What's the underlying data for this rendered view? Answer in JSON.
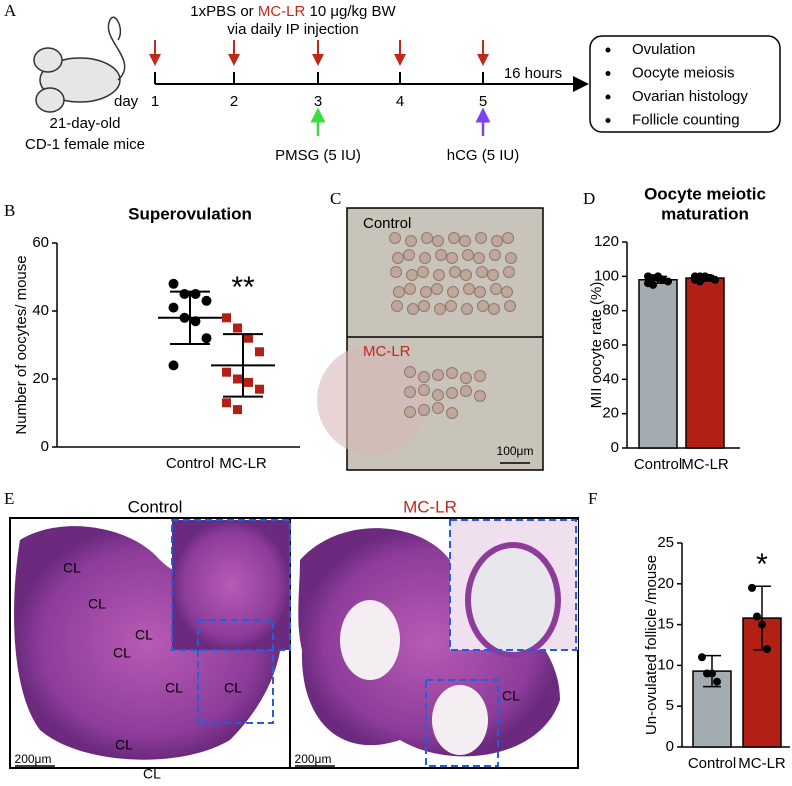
{
  "panel_labels": [
    "A",
    "B",
    "C",
    "D",
    "E",
    "F"
  ],
  "schematic": {
    "treatment_prefix": "1xPBS or",
    "treatment_toxin": "MC-LR",
    "treatment_suffix": "10 μg/kg BW",
    "route": "via daily IP injection",
    "day_word": "day",
    "days": [
      "1",
      "2",
      "3",
      "4",
      "5"
    ],
    "interval": "16 hours",
    "animal": [
      "21-day-old",
      "CD-1 female mice"
    ],
    "pmsg": "PMSG (5 IU)",
    "hcg": "hCG (5 IU)",
    "endpoints": [
      "Ovulation",
      "Oocyte meiosis",
      "Ovarian histology",
      "Follicle counting"
    ]
  },
  "chart_data": [
    {
      "type": "dotplot",
      "title": "Superovulation",
      "ylabel": "Number  of oocytes/ mouse",
      "categories": [
        "Control",
        "MC-LR"
      ],
      "category_colors": [
        "#000000",
        "#c0281b"
      ],
      "groups": [
        {
          "color": "#000000",
          "marker": "circle",
          "values": [
            48,
            45,
            45,
            43,
            41,
            38,
            37,
            32,
            24
          ],
          "mean": 38,
          "sd": 7.7
        },
        {
          "color": "#b22015",
          "marker": "square",
          "values": [
            38,
            35,
            32,
            28,
            22,
            20,
            19,
            17,
            13,
            11
          ],
          "mean": 24,
          "sd": 9.2
        }
      ],
      "annotation": "**",
      "ylim": [
        0,
        60
      ],
      "yticks": [
        0,
        20,
        40,
        60
      ]
    },
    {
      "type": "bar",
      "title": [
        "Oocyte meiotic",
        "maturation"
      ],
      "ylabel": "MII oocyte rate (%)",
      "categories": [
        "Control",
        "MC-LR"
      ],
      "category_colors": [
        "#000000",
        "#c0281b"
      ],
      "colors": [
        "#a3adb1",
        "#b22015"
      ],
      "values": [
        98,
        99
      ],
      "errors": [
        2,
        1.5
      ],
      "points": [
        [
          100,
          99,
          99,
          98,
          97,
          96,
          95,
          100
        ],
        [
          100,
          100,
          99,
          99,
          98,
          98,
          97,
          100,
          99
        ]
      ],
      "ylim": [
        0,
        120
      ],
      "yticks": [
        0,
        20,
        40,
        60,
        80,
        100,
        120
      ]
    },
    {
      "type": "bar",
      "ylabel": "Un-ovulated follicle /mouse",
      "categories": [
        "Control",
        "MC-LR"
      ],
      "category_colors": [
        "#000000",
        "#c0281b"
      ],
      "colors": [
        "#a3adb1",
        "#b22015"
      ],
      "values": [
        9.3,
        15.8
      ],
      "errors": [
        1.9,
        3.9
      ],
      "points": [
        [
          11,
          9,
          9,
          8
        ],
        [
          19.5,
          16,
          15,
          12
        ]
      ],
      "annotation": "*",
      "ylim": [
        0,
        25
      ],
      "yticks": [
        0,
        5,
        10,
        15,
        20,
        25
      ]
    }
  ],
  "micrographs": {
    "C": {
      "labels": [
        "Control",
        "MC-LR"
      ],
      "scale": "100μm"
    },
    "E": {
      "titles": [
        "Control",
        "MC-LR"
      ],
      "scales": [
        "200μm",
        "200μm"
      ],
      "control_cl": [
        "CL",
        "CL",
        "CL",
        "CL",
        "CL",
        "CL",
        "CL",
        "CL"
      ],
      "mclr_cl": [
        "CL"
      ]
    }
  }
}
